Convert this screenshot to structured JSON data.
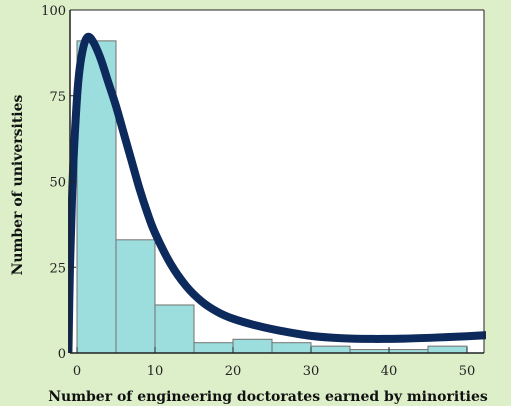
{
  "chart_data": {
    "type": "bar",
    "title": "",
    "xlabel": "Number of engineering doctorates earned by minorities",
    "ylabel": "Number of universities",
    "xlim": [
      0,
      52.5
    ],
    "ylim": [
      0,
      100
    ],
    "x_ticks": [
      0,
      10,
      20,
      30,
      40,
      50
    ],
    "y_ticks": [
      0,
      25,
      50,
      75,
      100
    ],
    "bins": [
      {
        "start": 0,
        "end": 5,
        "value": 91
      },
      {
        "start": 5,
        "end": 10,
        "value": 33
      },
      {
        "start": 10,
        "end": 15,
        "value": 14
      },
      {
        "start": 15,
        "end": 20,
        "value": 3
      },
      {
        "start": 20,
        "end": 25,
        "value": 4
      },
      {
        "start": 25,
        "end": 30,
        "value": 3
      },
      {
        "start": 30,
        "end": 35,
        "value": 2
      },
      {
        "start": 35,
        "end": 40,
        "value": 1
      },
      {
        "start": 40,
        "end": 45,
        "value": 1
      },
      {
        "start": 45,
        "end": 50,
        "value": 2
      }
    ],
    "fitted_curve": {
      "x": [
        -1.1,
        -0.9,
        -0.6,
        -0.2,
        0.2,
        0.7,
        1.3,
        2,
        3,
        4,
        5,
        6,
        7,
        8,
        9,
        10,
        12,
        14,
        16,
        18,
        20,
        23,
        26,
        30,
        34,
        38,
        42,
        46,
        50,
        52.5
      ],
      "y": [
        0,
        25,
        48,
        67,
        80,
        88,
        92,
        91,
        86,
        79,
        72,
        64,
        56,
        48,
        41,
        35,
        26,
        19.5,
        15,
        12,
        10,
        8,
        6.5,
        5,
        4.3,
        4.1,
        4.2,
        4.5,
        4.9,
        5.2
      ]
    },
    "grid": false,
    "legend": "none",
    "colors": {
      "bar_fill": "#9cdede",
      "bar_stroke": "#707070",
      "curve": "#0d2a5c",
      "plot_bg": "#ffffff",
      "page_bg": "#dcefc8"
    }
  }
}
